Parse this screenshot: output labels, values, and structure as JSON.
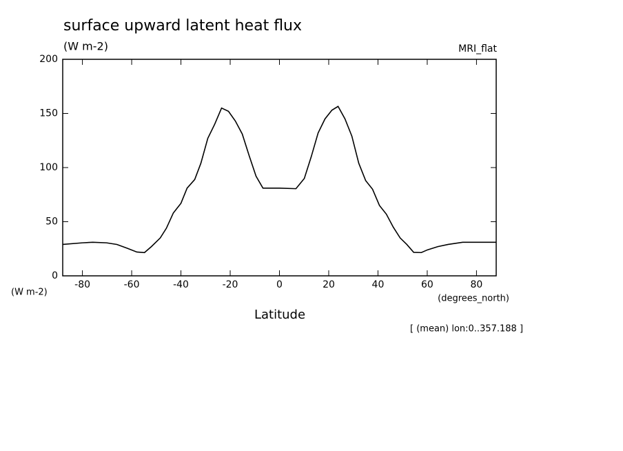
{
  "chart_data": {
    "type": "line",
    "title": "surface upward latent heat flux",
    "subtitle": "(W m-2)",
    "dataset_label": "MRI_flat",
    "y_units": "(W m-2)",
    "x_units": "(degrees_north)",
    "x_label": "Latitude",
    "annotation": "[ (mean) lon:0..357.188 ]",
    "x": [
      -88,
      -80,
      -75.8,
      -70.2,
      -66,
      -61.8,
      -57.9,
      -54.8,
      -52,
      -48.4,
      -45.9,
      -43.1,
      -40,
      -37.5,
      -34.4,
      -31.9,
      -29.1,
      -26.3,
      -23.5,
      -20.7,
      -17.9,
      -15.1,
      -12.3,
      -9.5,
      -6.7,
      0,
      6.7,
      10.1,
      12.9,
      15.7,
      18.5,
      21.3,
      23.8,
      26.6,
      29.4,
      32.2,
      35,
      37.8,
      40.6,
      43.4,
      46.2,
      49,
      51.7,
      54.5,
      57.6,
      60.1,
      64.3,
      68.5,
      74.4,
      82.2,
      88
    ],
    "values": [
      29,
      30.5,
      31,
      30.5,
      29,
      25.5,
      22,
      21.5,
      27,
      35,
      44,
      58,
      67,
      81,
      89,
      104,
      127,
      140,
      155,
      152,
      143,
      131,
      111,
      92,
      81,
      81,
      80.5,
      90,
      110,
      132,
      145,
      153,
      156.5,
      145,
      129,
      104,
      88,
      80,
      65,
      57,
      45,
      35,
      29,
      21.7,
      21.5,
      24,
      27,
      29,
      31,
      31,
      31
    ],
    "color": "#000000",
    "xlim": [
      -88,
      88
    ],
    "xticks": [
      -80,
      -60,
      -40,
      -20,
      0,
      20,
      40,
      60,
      80
    ],
    "ylim": [
      0,
      200
    ],
    "yticks": [
      0,
      50,
      100,
      150,
      200
    ]
  }
}
